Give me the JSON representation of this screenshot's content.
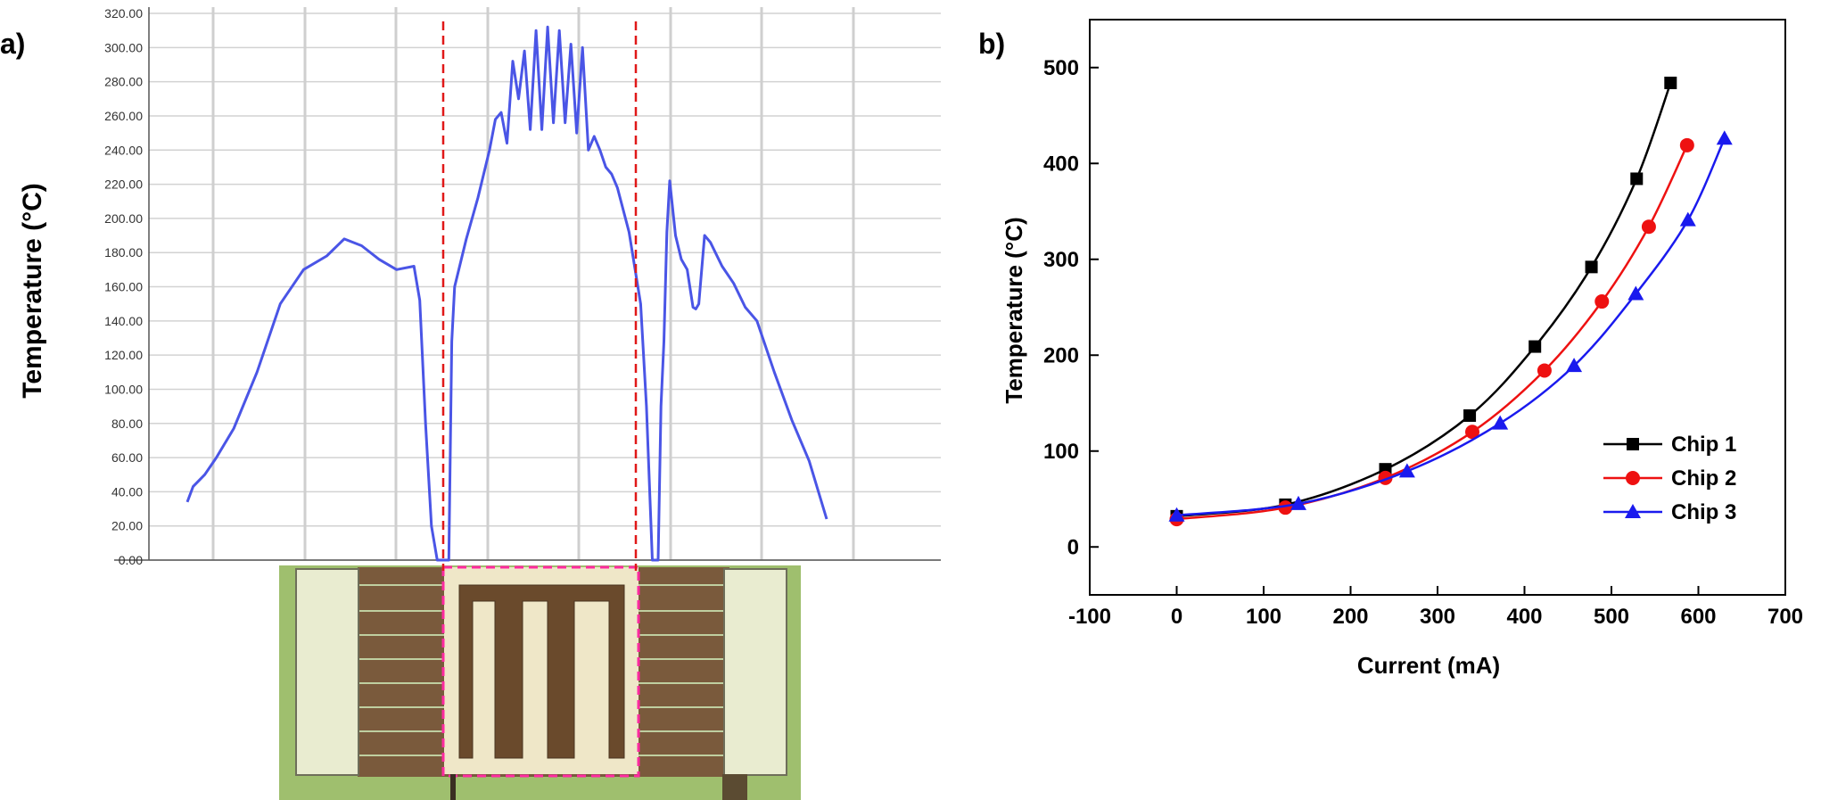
{
  "panel_a": {
    "label": "a)",
    "ylabel": "Temperature (°C)"
  },
  "panel_b": {
    "label": "b)",
    "xlabel": "Current (mA)",
    "ylabel": "Temperature (°C)"
  },
  "chart_data": [
    {
      "type": "line",
      "panel": "a)",
      "title": "",
      "xlabel": "",
      "ylabel": "Temperature (°C)",
      "ylim": [
        0,
        320
      ],
      "y_ticks": [
        "0.00",
        "20.00",
        "40.00",
        "60.00",
        "80.00",
        "100.00",
        "120.00",
        "140.00",
        "160.00",
        "180.00",
        "200.00",
        "220.00",
        "240.00",
        "260.00",
        "280.00",
        "300.00",
        "320.00"
      ],
      "grid": true,
      "x_axis_unlabeled": true,
      "series_color": "#4a55e6",
      "series": [
        {
          "x": [
            0,
            1,
            3,
            5,
            8,
            12,
            16,
            20,
            24,
            27,
            30,
            33,
            36,
            39,
            40,
            41,
            42,
            43,
            44,
            44.5,
            45,
            45.5,
            46,
            48,
            50,
            52,
            53,
            54,
            55,
            56,
            57,
            58,
            59,
            60,
            61,
            62,
            63,
            64,
            65,
            66,
            67,
            68,
            69,
            70,
            71,
            72,
            73,
            74,
            76,
            78,
            79,
            80,
            80.5,
            81,
            81.5,
            82,
            82.5,
            83,
            84,
            85,
            86,
            87,
            87.5,
            88,
            89,
            90,
            92,
            94,
            96,
            98,
            101,
            104,
            107,
            110
          ],
          "values": [
            34,
            43,
            50,
            60,
            77,
            110,
            150,
            170,
            178,
            188,
            184,
            176,
            170,
            172,
            152,
            80,
            20,
            0,
            0,
            0,
            0,
            128,
            160,
            188,
            212,
            240,
            258,
            262,
            244,
            292,
            270,
            298,
            252,
            310,
            252,
            312,
            256,
            310,
            256,
            302,
            250,
            300,
            240,
            248,
            240,
            230,
            226,
            218,
            192,
            150,
            90,
            0,
            0,
            0,
            90,
            128,
            192,
            222,
            190,
            176,
            170,
            148,
            147,
            150,
            190,
            186,
            172,
            162,
            148,
            140,
            110,
            82,
            58,
            24
          ]
        }
      ]
    },
    {
      "type": "line",
      "panel": "b)",
      "title": "",
      "xlabel": "Current (mA)",
      "ylabel": "Temperature (°C)",
      "xlim": [
        -100,
        700
      ],
      "ylim": [
        -50,
        550
      ],
      "x_ticks": [
        -100,
        0,
        100,
        200,
        300,
        400,
        500,
        600,
        700
      ],
      "y_ticks": [
        0,
        100,
        200,
        300,
        400,
        500
      ],
      "grid": false,
      "legend_position": "bottom-right",
      "series": [
        {
          "name": "Chip 1",
          "color": "#000000",
          "marker": "square",
          "x": [
            0,
            125,
            240,
            337,
            412,
            477,
            529,
            568
          ],
          "values": [
            32,
            44,
            81,
            137,
            209,
            292,
            384,
            484
          ]
        },
        {
          "name": "Chip 2",
          "color": "#ee1111",
          "marker": "circle",
          "x": [
            0,
            125,
            240,
            340,
            423,
            489,
            543,
            587
          ],
          "values": [
            29,
            41,
            72,
            120,
            184,
            256,
            334,
            419
          ]
        },
        {
          "name": "Chip 3",
          "color": "#1a1aee",
          "marker": "triangle",
          "x": [
            0,
            140,
            265,
            372,
            457,
            528,
            588,
            630
          ],
          "values": [
            33,
            45,
            79,
            129,
            189,
            264,
            341,
            426
          ]
        }
      ]
    }
  ]
}
